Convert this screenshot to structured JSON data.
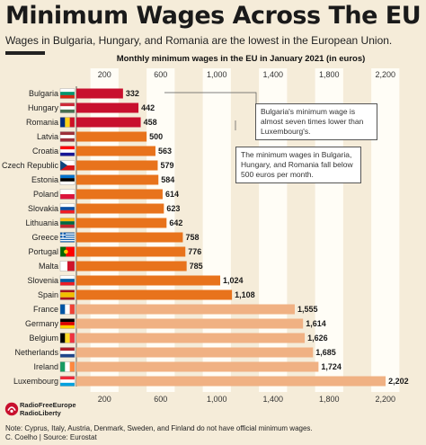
{
  "header": {
    "title": "Minimum Wages Across The EU",
    "subtitle": "Wages in Bulgaria, Hungary, and Romania are the lowest in the European Union."
  },
  "chart_data": {
    "type": "bar",
    "orientation": "horizontal",
    "title": "Monthly minimum wages in the EU in January 2021 (in euros)",
    "xlim": [
      0,
      2300
    ],
    "xticks": [
      200,
      600,
      1000,
      1400,
      1800,
      2200
    ],
    "xtick_labels": [
      "200",
      "600",
      "1,000",
      "1,400",
      "1,800",
      "2,200"
    ],
    "categories": [
      "Bulgaria",
      "Hungary",
      "Romania",
      "Latvia",
      "Croatia",
      "Czech Republic",
      "Estonia",
      "Poland",
      "Slovakia",
      "Lithuania",
      "Greece",
      "Portugal",
      "Malta",
      "Slovenia",
      "Spain",
      "France",
      "Germany",
      "Belgium",
      "Netherlands",
      "Ireland",
      "Luxembourg"
    ],
    "values": [
      332,
      442,
      458,
      500,
      563,
      579,
      584,
      614,
      623,
      642,
      758,
      776,
      785,
      1024,
      1108,
      1555,
      1614,
      1626,
      1685,
      1724,
      2202
    ],
    "value_labels": [
      "332",
      "442",
      "458",
      "500",
      "563",
      "579",
      "584",
      "614",
      "623",
      "642",
      "758",
      "776",
      "785",
      "1,024",
      "1,108",
      "1,555",
      "1,614",
      "1,626",
      "1,685",
      "1,724",
      "2,202"
    ],
    "bar_colors": [
      "#c8102e",
      "#c8102e",
      "#c8102e",
      "#e8731c",
      "#e8731c",
      "#e8731c",
      "#e8731c",
      "#e8731c",
      "#e8731c",
      "#e8731c",
      "#e8731c",
      "#e8731c",
      "#e8731c",
      "#e8731c",
      "#e8731c",
      "#f0b183",
      "#f0b183",
      "#f0b183",
      "#f0b183",
      "#f0b183",
      "#f0b183"
    ],
    "flags": [
      {
        "type": "h",
        "colors": [
          "#ffffff",
          "#00966e",
          "#d62612"
        ]
      },
      {
        "type": "h",
        "colors": [
          "#ce2939",
          "#ffffff",
          "#477050"
        ]
      },
      {
        "type": "v",
        "colors": [
          "#002b7f",
          "#fcd116",
          "#ce1126"
        ]
      },
      {
        "type": "h",
        "colors": [
          "#9e3039",
          "#ffffff",
          "#9e3039"
        ]
      },
      {
        "type": "h",
        "colors": [
          "#ff0000",
          "#ffffff",
          "#171796"
        ]
      },
      {
        "type": "cz",
        "colors": [
          "#ffffff",
          "#d7141a",
          "#11457e"
        ]
      },
      {
        "type": "h",
        "colors": [
          "#0072ce",
          "#000000",
          "#ffffff"
        ]
      },
      {
        "type": "h2",
        "colors": [
          "#ffffff",
          "#dc143c"
        ]
      },
      {
        "type": "h",
        "colors": [
          "#ffffff",
          "#0b4ea2",
          "#ee1c25"
        ]
      },
      {
        "type": "h",
        "colors": [
          "#fdb913",
          "#006a44",
          "#c1272d"
        ]
      },
      {
        "type": "gr",
        "colors": [
          "#0d5eaf",
          "#ffffff"
        ]
      },
      {
        "type": "pt",
        "colors": [
          "#006600",
          "#ff0000"
        ]
      },
      {
        "type": "mt",
        "colors": [
          "#ffffff",
          "#cf142b"
        ]
      },
      {
        "type": "h",
        "colors": [
          "#ffffff",
          "#005da4",
          "#ed1c24"
        ]
      },
      {
        "type": "es",
        "colors": [
          "#aa151b",
          "#f1bf00",
          "#aa151b"
        ]
      },
      {
        "type": "v",
        "colors": [
          "#0055a4",
          "#ffffff",
          "#ef4135"
        ]
      },
      {
        "type": "h",
        "colors": [
          "#000000",
          "#dd0000",
          "#ffce00"
        ]
      },
      {
        "type": "v",
        "colors": [
          "#000000",
          "#fdda24",
          "#ef3340"
        ]
      },
      {
        "type": "h",
        "colors": [
          "#ae1c28",
          "#ffffff",
          "#21468b"
        ]
      },
      {
        "type": "v",
        "colors": [
          "#169b62",
          "#ffffff",
          "#ff883e"
        ]
      },
      {
        "type": "h",
        "colors": [
          "#ed2939",
          "#ffffff",
          "#00a1de"
        ]
      }
    ],
    "grid": "alternating vertical bands"
  },
  "annotations": {
    "note1": "Bulgaria's minimum wage is almost seven times lower than Luxembourg's.",
    "note2": "The minimum wages in Bulgaria, Hungary, and Romania fall below 500 euros per month."
  },
  "footer": {
    "logo_line1": "RadioFreeEurope",
    "logo_line2": "RadioLiberty",
    "note": "Note: Cyprus, Italy, Austria, Denmark, Sweden, and Finland do not have official minimum wages.",
    "credit": "C. Coelho | Source: Eurostat"
  },
  "colors": {
    "background": "#f5ecd9",
    "band": "#fffdf6",
    "low": "#c8102e",
    "mid": "#e8731c",
    "high": "#f0b183"
  }
}
